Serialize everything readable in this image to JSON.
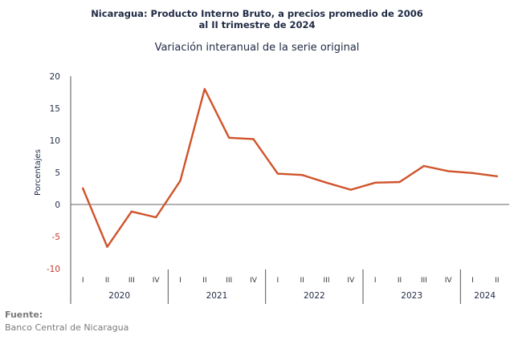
{
  "title_line1": "Nicaragua: Producto Interno Bruto, a precios promedio de 2006",
  "title_line2": "al II trimestre de 2024",
  "source_label": "Fuente:",
  "source_text": "Banco Central de Nicaragua",
  "colors": {
    "line": "#d0532a",
    "text": "#1f2a44",
    "negative_tick": "#c0392b"
  },
  "chart_data": {
    "type": "line",
    "title": "Variación interanual de la serie original",
    "ylabel": "Porcentajes",
    "ylim": [
      -10,
      20
    ],
    "yticks": [
      20,
      15,
      10,
      5,
      0,
      -5,
      -10
    ],
    "grid": false,
    "categories": [
      "I",
      "II",
      "III",
      "IV",
      "I",
      "II",
      "III",
      "IV",
      "I",
      "II",
      "III",
      "IV",
      "I",
      "II",
      "III",
      "IV",
      "I",
      "II"
    ],
    "years": [
      {
        "label": "2020",
        "quarters": 4
      },
      {
        "label": "2021",
        "quarters": 4
      },
      {
        "label": "2022",
        "quarters": 4
      },
      {
        "label": "2023",
        "quarters": 4
      },
      {
        "label": "2024",
        "quarters": 2
      }
    ],
    "series": [
      {
        "values": [
          2.5,
          -6.6,
          -1.1,
          -2.0,
          3.7,
          18.0,
          10.4,
          10.2,
          4.8,
          4.6,
          3.4,
          2.3,
          3.4,
          3.5,
          6.0,
          5.2,
          4.9,
          4.4
        ]
      }
    ]
  }
}
